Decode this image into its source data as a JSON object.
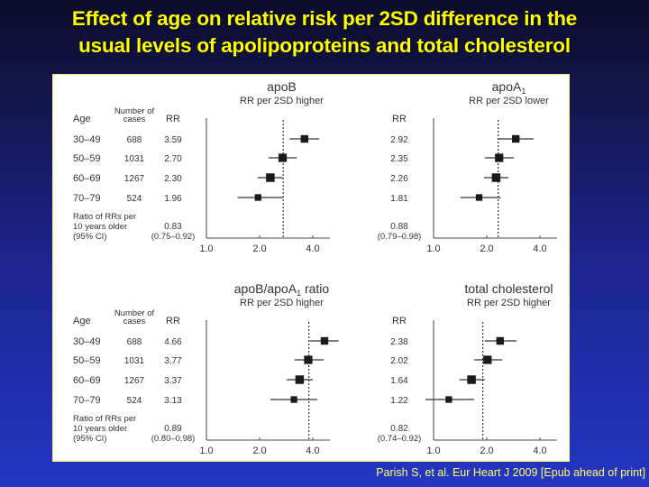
{
  "title": {
    "line1": "Effect of age on relative risk per 2SD difference in the",
    "line2": "usual levels of apolipoproteins and total cholesterol"
  },
  "citation": "Parish S, et al. Eur Heart J 2009 [Epub ahead of print]",
  "table_headers": {
    "age": "Age",
    "cases_line1": "Number of",
    "cases_line2": "cases",
    "rr": "RR"
  },
  "age_groups": [
    "30–49",
    "50–59",
    "60–69",
    "70–79"
  ],
  "cases": [
    "688",
    "1031",
    "1267",
    "524"
  ],
  "ratio_label": [
    "Ratio of RRs per",
    "10 years older",
    "(95% CI)"
  ],
  "chart_data": [
    {
      "type": "forest",
      "title": "apoB",
      "title_sub": "",
      "subtitle": "RR per 2SD higher",
      "xscale": "log2",
      "xlim": [
        1.0,
        5.0
      ],
      "xticks": [
        "1.0",
        "2.0",
        "4.0"
      ],
      "overall_rr": 2.72,
      "rows": [
        {
          "age": "30–49",
          "cases": 688,
          "rr": 3.59,
          "rr_label": "3.59",
          "ci": [
            2.96,
            4.35
          ],
          "weight": 0.8
        },
        {
          "age": "50–59",
          "cases": 1031,
          "rr": 2.7,
          "rr_label": "2.70",
          "ci": [
            2.25,
            3.25
          ],
          "weight": 0.95
        },
        {
          "age": "60–69",
          "cases": 1267,
          "rr": 2.3,
          "rr_label": "2.30",
          "ci": [
            1.95,
            2.7
          ],
          "weight": 1.0
        },
        {
          "age": "70–79",
          "cases": 524,
          "rr": 1.96,
          "rr_label": "1.96",
          "ci": [
            1.5,
            2.72
          ],
          "weight": 0.6
        }
      ],
      "ratio": {
        "value": "0.83",
        "ci": "(0.75–0.92)"
      }
    },
    {
      "type": "forest",
      "title": "apoA",
      "title_sub": "1",
      "subtitle": "RR per 2SD lower",
      "xscale": "log2",
      "xlim": [
        1.0,
        5.0
      ],
      "xticks": [
        "1.0",
        "2.0",
        "4.0"
      ],
      "overall_rr": 2.32,
      "rows": [
        {
          "age": "30–49",
          "cases": 688,
          "rr": 2.92,
          "rr_label": "2.92",
          "ci": [
            2.32,
            3.68
          ],
          "weight": 0.8
        },
        {
          "age": "50–59",
          "cases": 1031,
          "rr": 2.35,
          "rr_label": "2.35",
          "ci": [
            1.95,
            2.85
          ],
          "weight": 0.95
        },
        {
          "age": "60–69",
          "cases": 1267,
          "rr": 2.26,
          "rr_label": "2.26",
          "ci": [
            1.93,
            2.65
          ],
          "weight": 1.0
        },
        {
          "age": "70–79",
          "cases": 524,
          "rr": 1.81,
          "rr_label": "1.81",
          "ci": [
            1.42,
            2.4
          ],
          "weight": 0.6
        }
      ],
      "ratio": {
        "value": "0.88",
        "ci": "(0.79–0.98)"
      }
    },
    {
      "type": "forest",
      "title": "apoB/apoA",
      "title_sub": "1",
      "title_suffix": " ratio",
      "subtitle": "RR per 2SD higher",
      "xscale": "log2",
      "xlim": [
        1.0,
        5.0
      ],
      "xticks": [
        "1.0",
        "2.0",
        "4.0"
      ],
      "overall_rr": 3.8,
      "rows": [
        {
          "age": "30–49",
          "cases": 688,
          "rr": 4.66,
          "rr_label": "4.66",
          "ci": [
            3.85,
            5.6
          ],
          "weight": 0.8
        },
        {
          "age": "50–59",
          "cases": 1031,
          "rr": 3.77,
          "rr_label": "3.77",
          "ci": [
            3.15,
            4.6
          ],
          "weight": 0.95
        },
        {
          "age": "60–69",
          "cases": 1267,
          "rr": 3.37,
          "rr_label": "3.37",
          "ci": [
            2.85,
            4.0
          ],
          "weight": 1.0
        },
        {
          "age": "70–79",
          "cases": 524,
          "rr": 3.13,
          "rr_label": "3.13",
          "ci": [
            2.3,
            4.25
          ],
          "weight": 0.6
        }
      ],
      "ratio": {
        "value": "0.89",
        "ci": "(0.80–0.98)"
      }
    },
    {
      "type": "forest",
      "title": "total cholesterol",
      "title_sub": "",
      "subtitle": "RR per 2SD higher",
      "xscale": "log2",
      "xlim": [
        1.0,
        5.0
      ],
      "xticks": [
        "1.0",
        "2.0",
        "4.0"
      ],
      "overall_rr": 1.9,
      "rows": [
        {
          "age": "30–49",
          "cases": 688,
          "rr": 2.38,
          "rr_label": "2.38",
          "ci": [
            1.95,
            2.95
          ],
          "weight": 0.8
        },
        {
          "age": "50–59",
          "cases": 1031,
          "rr": 2.02,
          "rr_label": "2.02",
          "ci": [
            1.7,
            2.45
          ],
          "weight": 0.95
        },
        {
          "age": "60–69",
          "cases": 1267,
          "rr": 1.64,
          "rr_label": "1.64",
          "ci": [
            1.4,
            1.95
          ],
          "weight": 1.0
        },
        {
          "age": "70–79",
          "cases": 524,
          "rr": 1.22,
          "rr_label": "1.22",
          "ci": [
            0.9,
            1.7
          ],
          "weight": 0.6
        }
      ],
      "ratio": {
        "value": "0.82",
        "ci": "(0.74–0.92)"
      }
    }
  ]
}
